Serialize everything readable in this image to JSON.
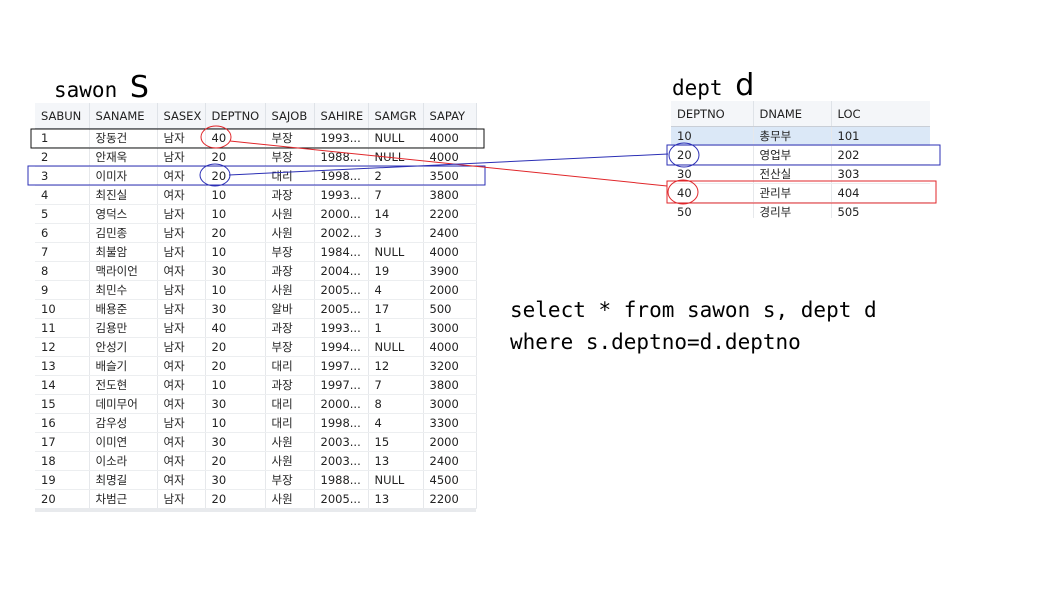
{
  "sawon": {
    "title_main": "sawon ",
    "title_alias": "S",
    "columns": [
      "SABUN",
      "SANAME",
      "SASEX",
      "DEPTNO",
      "SAJOB",
      "SAHIRE",
      "SAMGR",
      "SAPAY"
    ],
    "rows": [
      [
        "1",
        "장동건",
        "남자",
        "40",
        "부장",
        "1993...",
        "NULL",
        "4000"
      ],
      [
        "2",
        "안재욱",
        "남자",
        "20",
        "부장",
        "1988...",
        "NULL",
        "4000"
      ],
      [
        "3",
        "이미자",
        "여자",
        "20",
        "대리",
        "1998...",
        "2",
        "3500"
      ],
      [
        "4",
        "최진실",
        "여자",
        "10",
        "과장",
        "1993...",
        "7",
        "3800"
      ],
      [
        "5",
        "영덕스",
        "남자",
        "10",
        "사원",
        "2000...",
        "14",
        "2200"
      ],
      [
        "6",
        "김민종",
        "남자",
        "20",
        "사원",
        "2002...",
        "3",
        "2400"
      ],
      [
        "7",
        "최불암",
        "남자",
        "10",
        "부장",
        "1984...",
        "NULL",
        "4000"
      ],
      [
        "8",
        "맥라이언",
        "여자",
        "30",
        "과장",
        "2004...",
        "19",
        "3900"
      ],
      [
        "9",
        "최민수",
        "남자",
        "10",
        "사원",
        "2005...",
        "4",
        "2000"
      ],
      [
        "10",
        "배용준",
        "남자",
        "30",
        "알바",
        "2005...",
        "17",
        "500"
      ],
      [
        "11",
        "김용만",
        "남자",
        "40",
        "과장",
        "1993...",
        "1",
        "3000"
      ],
      [
        "12",
        "안성기",
        "남자",
        "20",
        "부장",
        "1994...",
        "NULL",
        "4000"
      ],
      [
        "13",
        "배슬기",
        "여자",
        "20",
        "대리",
        "1997...",
        "12",
        "3200"
      ],
      [
        "14",
        "전도현",
        "여자",
        "10",
        "과장",
        "1997...",
        "7",
        "3800"
      ],
      [
        "15",
        "데미무어",
        "여자",
        "30",
        "대리",
        "2000...",
        "8",
        "3000"
      ],
      [
        "16",
        "감우성",
        "남자",
        "10",
        "대리",
        "1998...",
        "4",
        "3300"
      ],
      [
        "17",
        "이미연",
        "여자",
        "30",
        "사원",
        "2003...",
        "15",
        "2000"
      ],
      [
        "18",
        "이소라",
        "여자",
        "20",
        "사원",
        "2003...",
        "13",
        "2400"
      ],
      [
        "19",
        "최명길",
        "여자",
        "30",
        "부장",
        "1988...",
        "NULL",
        "4500"
      ],
      [
        "20",
        "차범근",
        "남자",
        "20",
        "사원",
        "2005...",
        "13",
        "2200"
      ]
    ]
  },
  "dept": {
    "title_main": "dept ",
    "title_alias": "d",
    "columns": [
      "DEPTNO",
      "DNAME",
      "LOC"
    ],
    "rows": [
      [
        "10",
        "총무부",
        "101"
      ],
      [
        "20",
        "영업부",
        "202"
      ],
      [
        "30",
        "전산실",
        "303"
      ],
      [
        "40",
        "관리부",
        "404"
      ],
      [
        "50",
        "경리부",
        "505"
      ]
    ]
  },
  "sql": {
    "line1": "select * from sawon s, dept d",
    "line2": "where s.deptno=d.deptno"
  },
  "colors": {
    "red_highlight": "#e0262a",
    "blue_highlight": "#2b2fb5",
    "black_box": "#111111"
  }
}
